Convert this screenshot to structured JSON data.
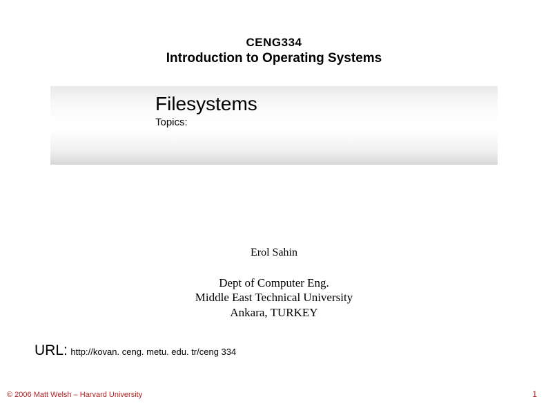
{
  "header": {
    "course_code": "CENG334",
    "course_name": "Introduction to Operating Systems"
  },
  "band": {
    "title": "Filesystems",
    "subtitle": "Topics:",
    "gradient_stops": [
      "#e9e9e9",
      "#f6f6f6",
      "#ffffff",
      "#ffffff",
      "#f1f1f1",
      "#d7d7d7"
    ]
  },
  "author": {
    "name": "Erol Sahin",
    "dept": "Dept of Computer Eng.",
    "university": "Middle East Technical University",
    "location": "Ankara, TURKEY"
  },
  "url": {
    "label": "URL:",
    "value": "http://kovan. ceng. metu. edu. tr/ceng 334"
  },
  "footer": {
    "copyright": "© 2006 Matt Welsh – Harvard University",
    "page_number": "1",
    "text_color": "#b22222"
  },
  "styling": {
    "background_color": "#ffffff",
    "header_font": "Arial",
    "body_serif_font": "Times New Roman",
    "course_code_fontsize": 17,
    "course_name_fontsize": 19,
    "band_title_fontsize": 28,
    "band_sub_fontsize": 15,
    "author_fontsize": 16,
    "affil_fontsize": 17,
    "url_label_fontsize": 21,
    "url_value_fontsize": 13,
    "footer_fontsize": 11
  }
}
